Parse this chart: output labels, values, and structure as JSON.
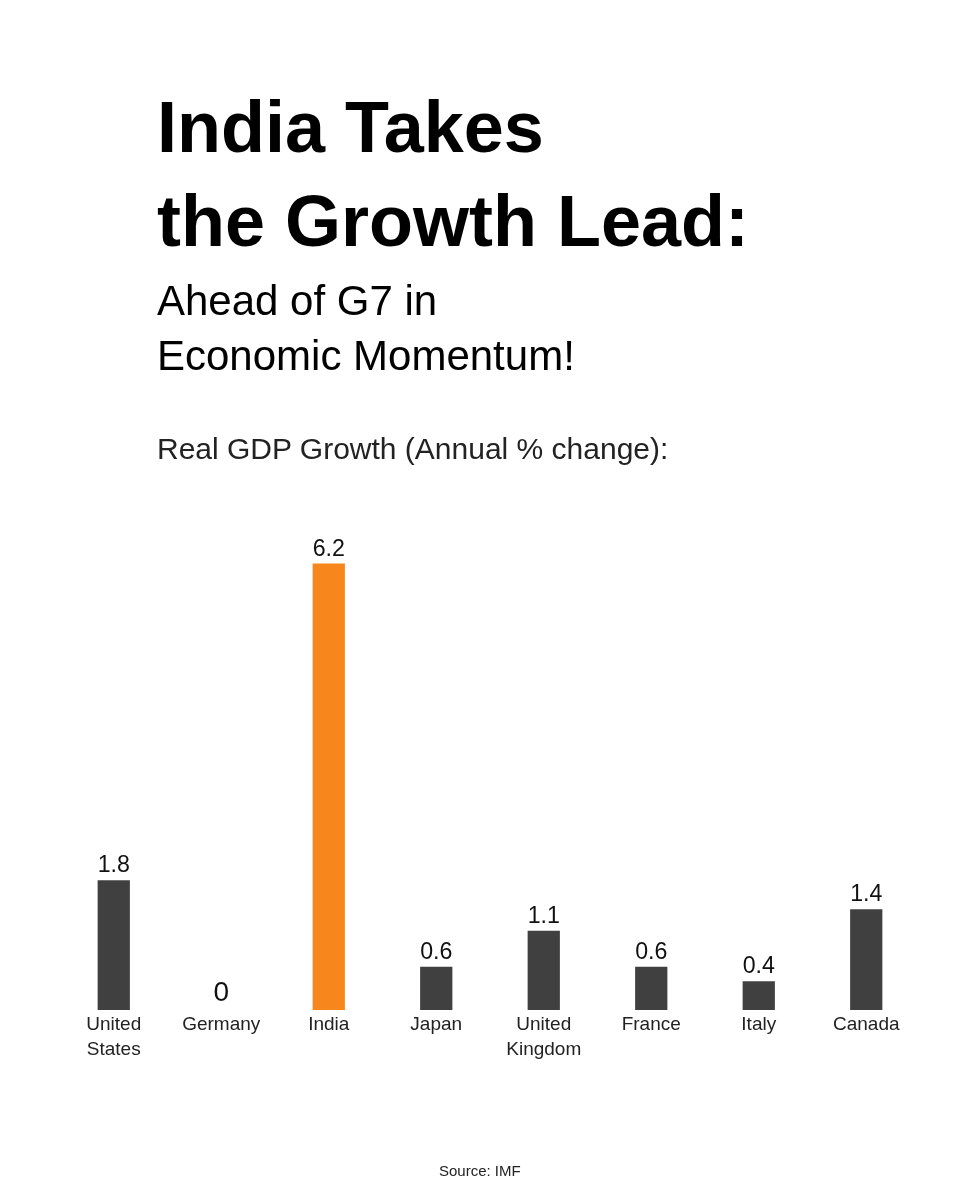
{
  "chart_data": {
    "type": "bar",
    "title": "India Takes\nthe Growth Lead:",
    "subtitle": "Ahead of G7 in\nEconomic Momentum!",
    "annotations": [
      "Real GDP Growth (Annual % change):",
      "Source: IMF"
    ],
    "categories": [
      "United\nStates",
      "Germany",
      "India",
      "Japan",
      "United\nKingdom",
      "France",
      "Italy",
      "Canada"
    ],
    "values": [
      1.8,
      0,
      6.2,
      0.6,
      1.1,
      0.6,
      0.4,
      1.4
    ],
    "colors": [
      "#404040",
      "#404040",
      "#f7861c",
      "#404040",
      "#404040",
      "#404040",
      "#404040",
      "#404040"
    ],
    "data_labels": true,
    "legend": false
  }
}
